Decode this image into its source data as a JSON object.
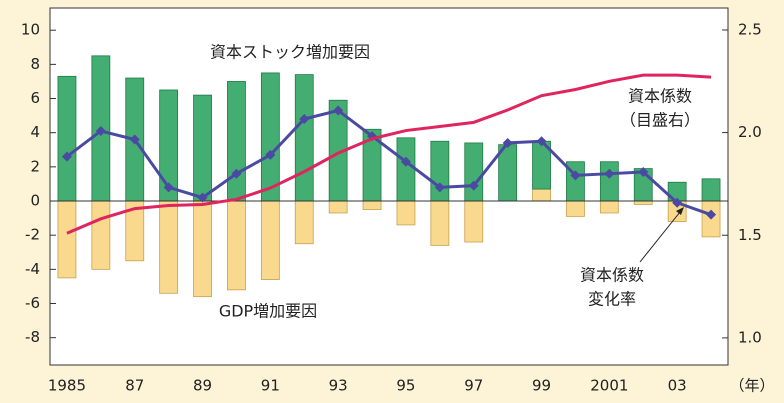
{
  "chart_data": {
    "type": "bar_line",
    "categories": [
      "1985",
      null,
      "87",
      null,
      "89",
      null,
      "91",
      null,
      "93",
      null,
      "95",
      null,
      "97",
      null,
      "99",
      null,
      "2001",
      null,
      "03",
      null
    ],
    "x_label": "（年）",
    "series": [
      {
        "name": "GDP増加要因",
        "type": "bar",
        "color": "#f8d98e",
        "values": [
          -4.5,
          -4.0,
          -3.5,
          -5.4,
          -5.6,
          -5.2,
          -4.6,
          -2.5,
          -0.7,
          -0.5,
          -1.4,
          -2.6,
          -2.4,
          0,
          0.7,
          -0.9,
          -0.7,
          -0.2,
          -1.2,
          -2.1
        ]
      },
      {
        "name": "資本ストック増加要因",
        "type": "bar",
        "color": "#43ad72",
        "values": [
          7.3,
          8.5,
          7.2,
          6.5,
          6.2,
          7.0,
          7.5,
          7.4,
          5.9,
          4.2,
          3.7,
          3.5,
          3.4,
          3.3,
          2.8,
          2.3,
          2.3,
          1.9,
          1.1,
          1.3
        ]
      },
      {
        "name": [
          "資本係数",
          "変化率"
        ],
        "type": "line",
        "color": "#4b4aa2",
        "values": [
          2.6,
          4.1,
          3.6,
          0.8,
          0.2,
          1.6,
          2.7,
          4.8,
          5.3,
          3.8,
          2.3,
          0.8,
          0.9,
          3.4,
          3.5,
          1.5,
          1.6,
          1.7,
          -0.1,
          -0.8
        ]
      },
      {
        "name": [
          "資本係数",
          "（目盛右）"
        ],
        "type": "line",
        "axis": "y2",
        "color": "#e0245e",
        "values": [
          1.51,
          1.58,
          1.63,
          1.645,
          1.65,
          1.675,
          1.73,
          1.81,
          1.9,
          1.97,
          2.01,
          2.03,
          2.05,
          2.11,
          2.18,
          2.21,
          2.25,
          2.28,
          2.28,
          2.27
        ]
      }
    ],
    "ylim": [
      -9.6,
      11.3
    ],
    "yticks": [
      -8,
      -6,
      -4,
      -2,
      0,
      2,
      4,
      6,
      8,
      10
    ],
    "y2lim": [
      0.868,
      2.607
    ],
    "y2ticks": [
      {
        "value": 1.0,
        "label": "1.0"
      },
      {
        "value": 1.5,
        "label": "1.5"
      },
      {
        "value": 2.0,
        "label": "2.0"
      },
      {
        "value": 2.5,
        "label": "2.5"
      }
    ]
  }
}
